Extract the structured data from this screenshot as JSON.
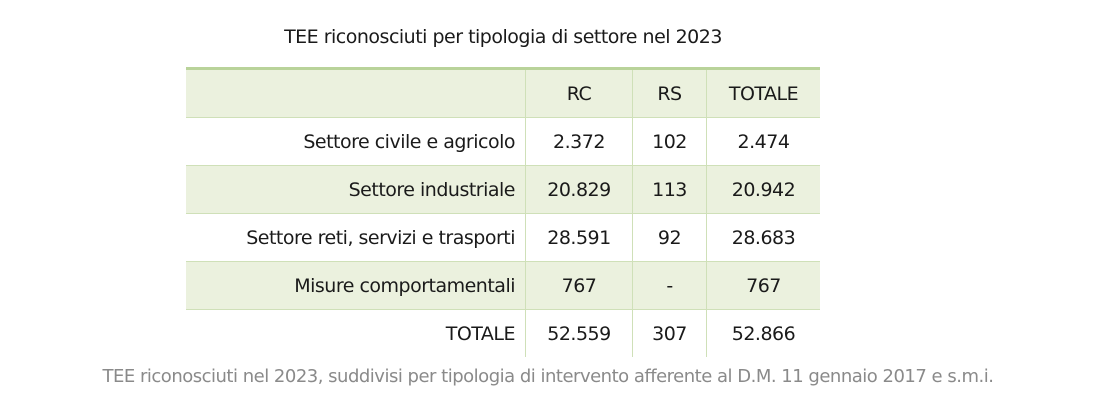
{
  "title": "TEE riconosciuti per tipologia di settore nel 2023",
  "table": {
    "headers": [
      "",
      "RC",
      "RS",
      "TOTALE"
    ],
    "rows": [
      {
        "label": "Settore civile e agricolo",
        "rc": "2.372",
        "rs": "102",
        "totale": "2.474"
      },
      {
        "label": "Settore industriale",
        "rc": "20.829",
        "rs": "113",
        "totale": "20.942"
      },
      {
        "label": "Settore reti, servizi e trasporti",
        "rc": "28.591",
        "rs": "92",
        "totale": "28.683"
      },
      {
        "label": "Misure comportamentali",
        "rc": "767",
        "rs": "-",
        "totale": "767"
      },
      {
        "label": "TOTALE",
        "rc": "52.559",
        "rs": "307",
        "totale": "52.866"
      }
    ]
  },
  "caption": "TEE riconosciuti nel 2023, suddivisi per tipologia di intervento afferente al D.M. 11 gennaio 2017 e s.m.i.",
  "colors": {
    "accent": "#b9d39a",
    "shade": "#ebf1de"
  }
}
